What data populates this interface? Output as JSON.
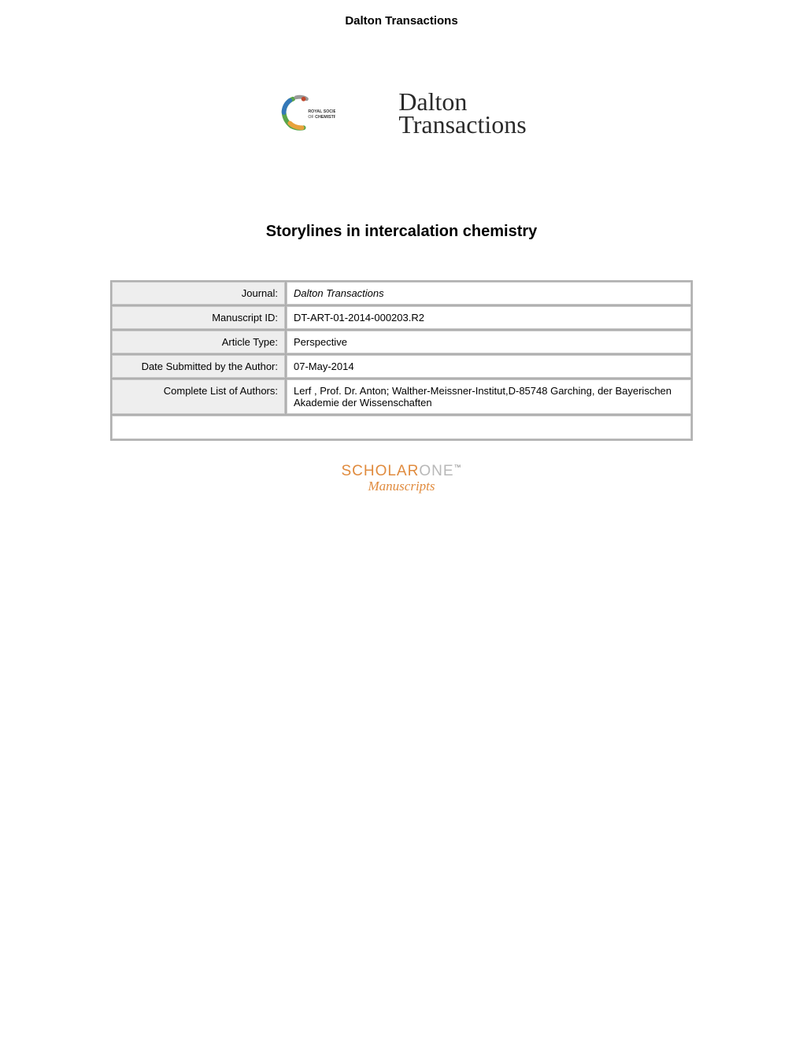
{
  "header": {
    "title": "Dalton Transactions"
  },
  "logos": {
    "rsc_text_line1": "ROYAL SOCIETY",
    "rsc_text_line2": "OF CHEMISTRY",
    "journal_line1": "Dalton",
    "journal_line2": "Transactions"
  },
  "paper": {
    "title": "Storylines in intercalation chemistry"
  },
  "metadata": {
    "rows": [
      {
        "label": "Journal:",
        "value": "Dalton Transactions",
        "italic": true
      },
      {
        "label": "Manuscript ID:",
        "value": "DT-ART-01-2014-000203.R2",
        "italic": false
      },
      {
        "label": "Article Type:",
        "value": "Perspective",
        "italic": false
      },
      {
        "label": "Date Submitted by the Author:",
        "value": "07-May-2014",
        "italic": false
      },
      {
        "label": "Complete List of Authors:",
        "value": "Lerf , Prof. Dr. Anton; Walther-Meissner-Institut,D-85748 Garching, der Bayerischen Akademie der Wissenschaften",
        "italic": false
      }
    ]
  },
  "footer_logo": {
    "scholar": "SCHOLAR",
    "one": "ONE",
    "tm": "™",
    "manuscripts": "Manuscripts"
  },
  "colors": {
    "table_label_bg": "#eeeeee",
    "table_border": "#c8c8c8",
    "scholarone_orange": "#e08b3e",
    "scholarone_gray": "#b8b8b8"
  }
}
